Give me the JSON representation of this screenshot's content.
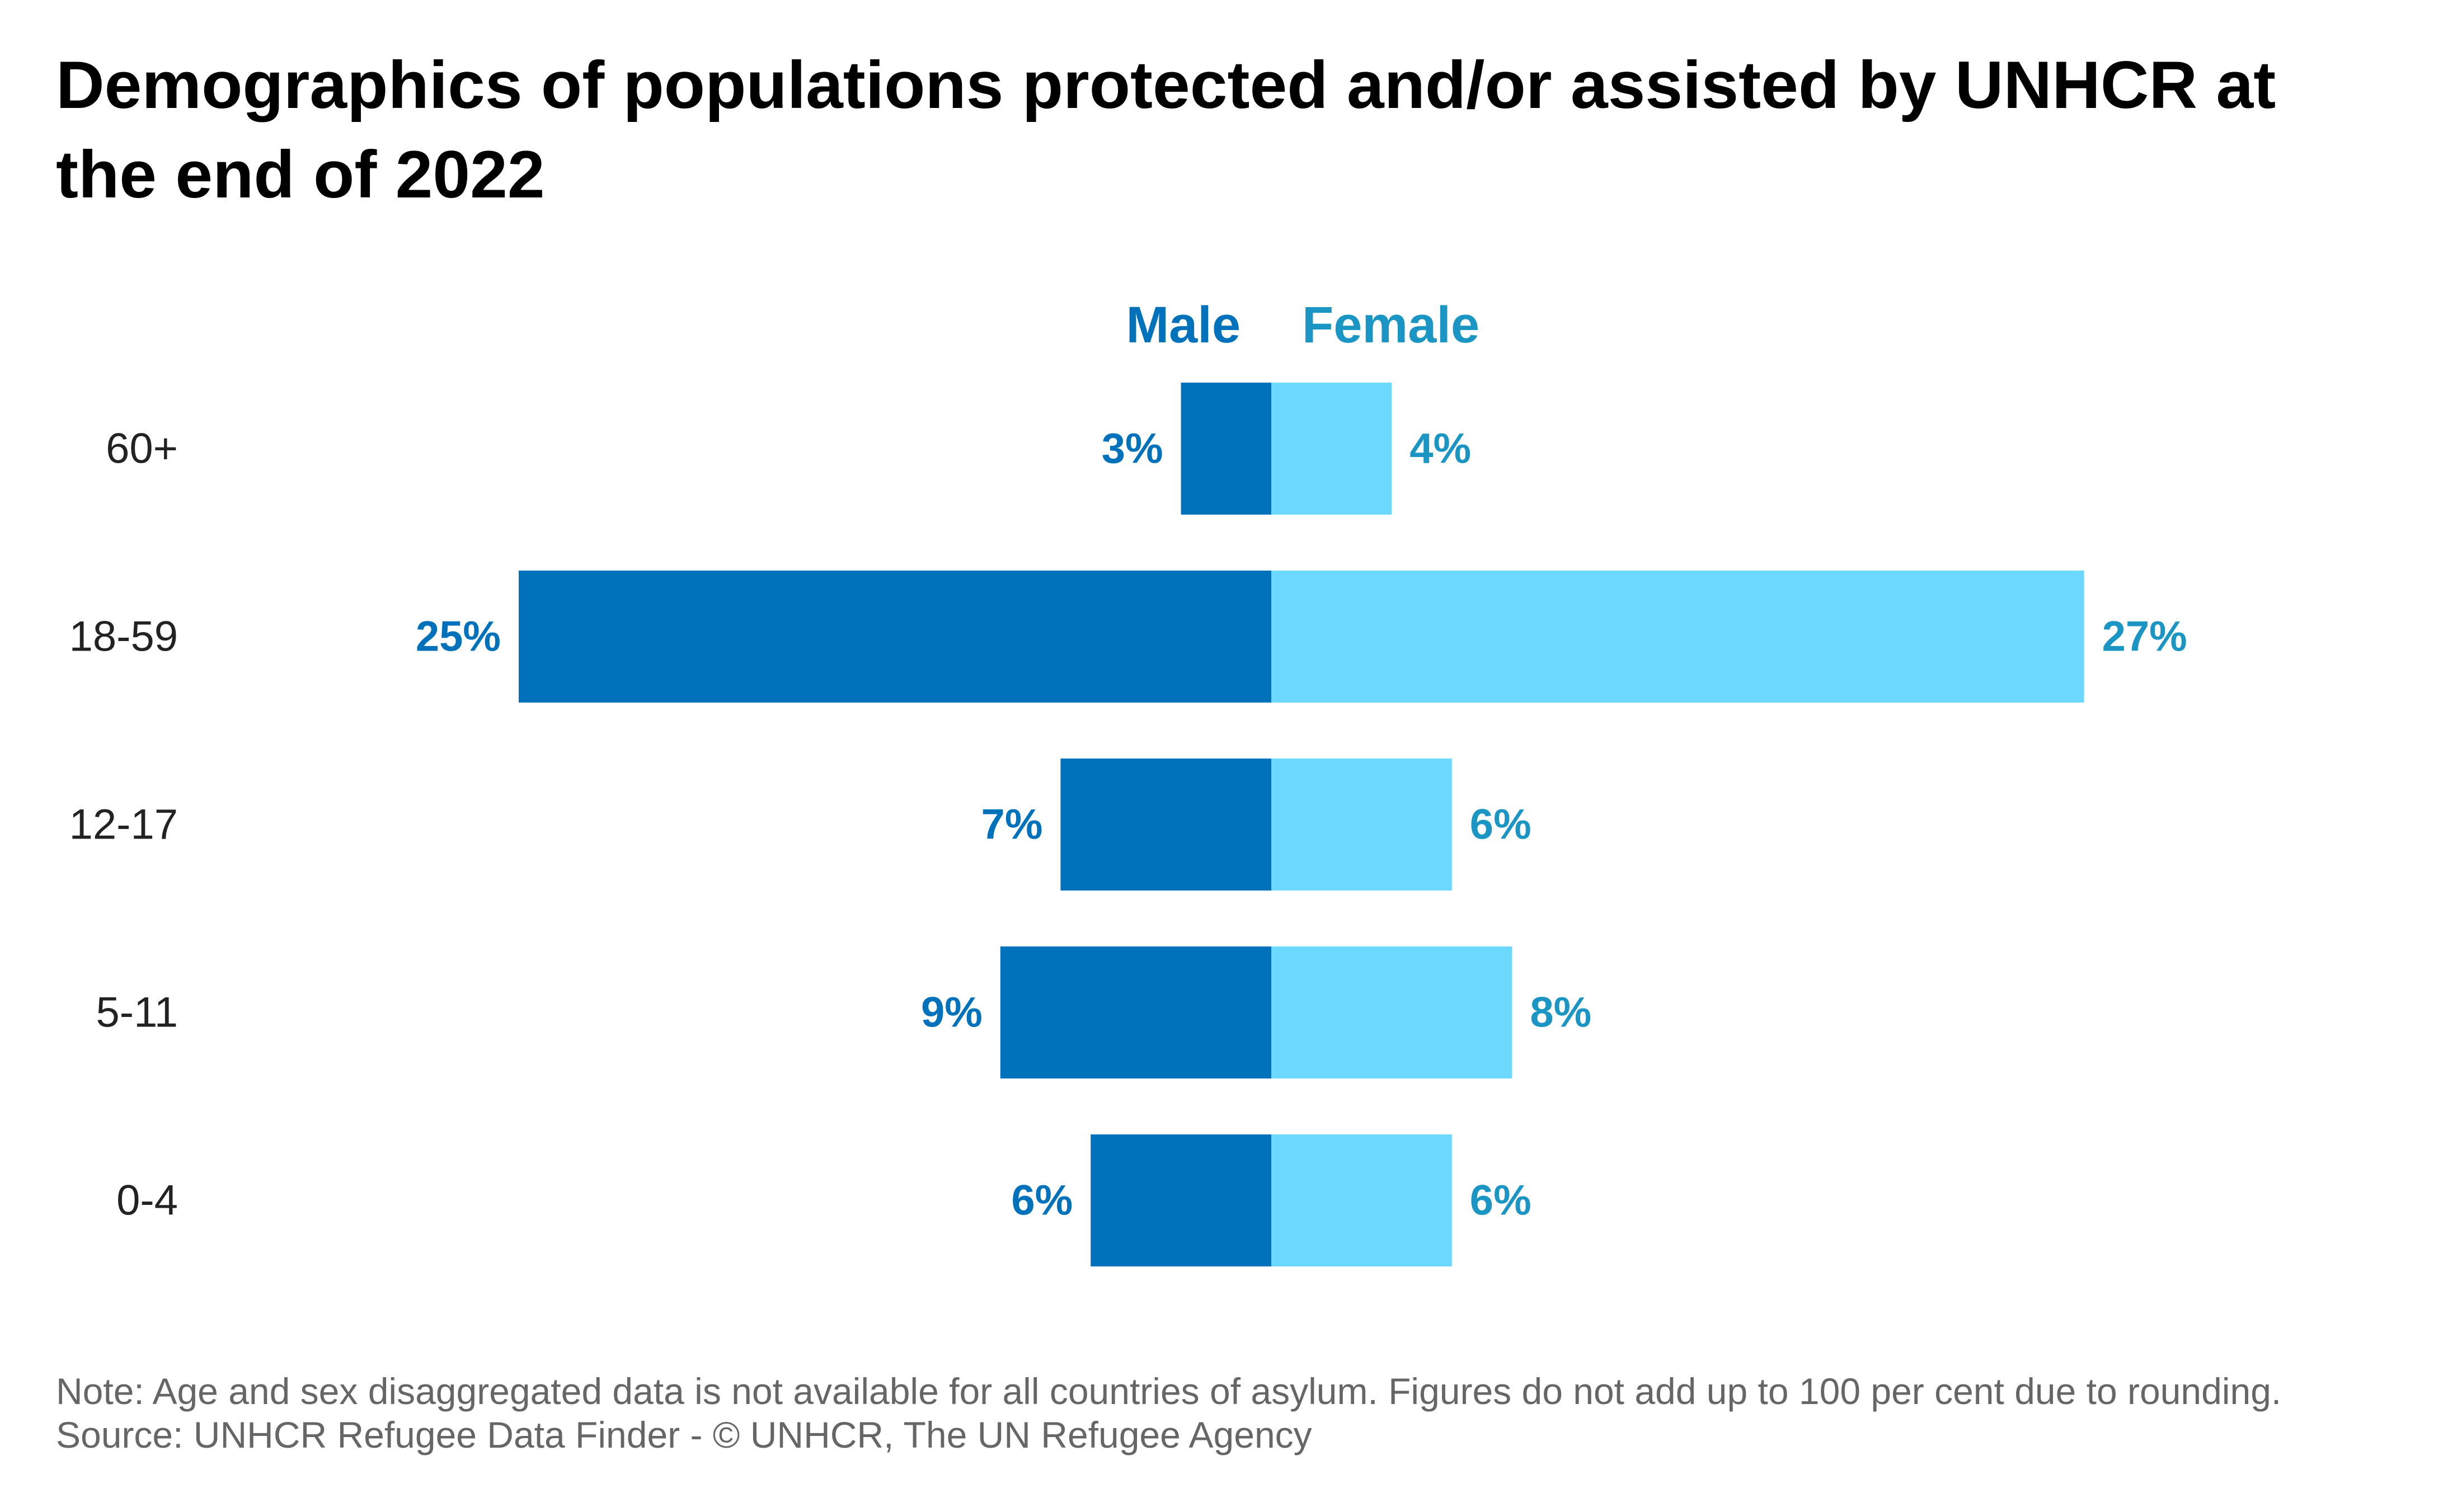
{
  "title": "Demographics of populations protected and/or assisted by UNHCR at the end of 2022",
  "chart_data": {
    "type": "bar",
    "orientation": "horizontal",
    "layout": "population-pyramid",
    "categories": [
      "60+",
      "18-59",
      "12-17",
      "5-11",
      "0-4"
    ],
    "series": [
      {
        "name": "Male",
        "values": [
          3,
          25,
          7,
          9,
          6
        ],
        "labels": [
          "3%",
          "25%",
          "7%",
          "9%",
          "6%"
        ],
        "color": "#0072bc",
        "side": "left"
      },
      {
        "name": "Female",
        "values": [
          4,
          27,
          6,
          8,
          6
        ],
        "labels": [
          "4%",
          "27%",
          "6%",
          "8%",
          "6%"
        ],
        "color": "#6cd8fd",
        "side": "right"
      }
    ],
    "unit": "%",
    "xlabel": "",
    "ylabel": "",
    "legend": "top-center",
    "grid": false
  },
  "colors": {
    "male_bar": "#0072bc",
    "female_bar": "#6cd8fd",
    "male_text": "#0072bc",
    "female_text": "#1a95c4",
    "category_text": "#222222",
    "note_text": "#666666"
  },
  "footer": {
    "note": "Note: Age and sex disaggregated data is not available for all countries of asylum. Figures do not add up to 100 per cent due to rounding.",
    "source": "Source: UNHCR Refugee Data Finder - © UNHCR, The UN Refugee Agency"
  }
}
